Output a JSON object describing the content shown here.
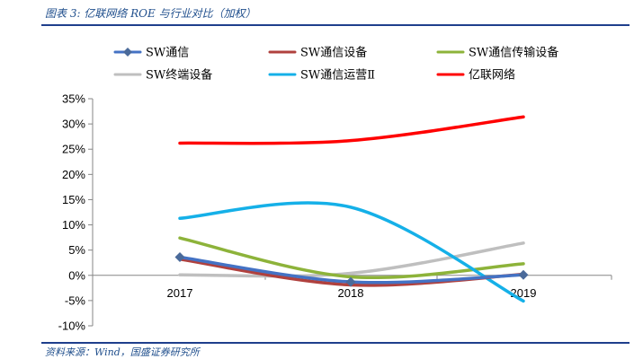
{
  "figure": {
    "title": "图表 3:  亿联网络 ROE 与行业对比（加权）",
    "source": "资料来源：Wind，国盛证券研究所"
  },
  "chart_data": {
    "type": "line",
    "title": "",
    "xlabel": "",
    "ylabel": "",
    "categories": [
      "2017",
      "2018",
      "2019"
    ],
    "ylim": [
      -10,
      35
    ],
    "yticks": [
      "35%",
      "30%",
      "25%",
      "20%",
      "15%",
      "10%",
      "5%",
      "0%",
      "-5%",
      "-10%"
    ],
    "ytick_values": [
      35,
      30,
      25,
      20,
      15,
      10,
      5,
      0,
      -5,
      -10
    ],
    "grid": false,
    "legend_position": "top",
    "series": [
      {
        "name": "SW通信",
        "values": [
          3.6,
          -1.3,
          0.1
        ],
        "color": "#4472C4",
        "marker": "diamond",
        "markerColor": "#4a6a9a"
      },
      {
        "name": "SW通信设备",
        "values": [
          3.2,
          -1.9,
          0.2
        ],
        "color": "#B0413E",
        "marker": "none"
      },
      {
        "name": "SW通信传输设备",
        "values": [
          7.4,
          -0.3,
          2.3
        ],
        "color": "#8DB33A",
        "marker": "none"
      },
      {
        "name": "SW终端设备",
        "values": [
          0.1,
          0.4,
          6.4
        ],
        "color": "#BFBFBF",
        "marker": "none"
      },
      {
        "name": "SW通信运营Ⅱ",
        "values": [
          11.3,
          13.5,
          -5.1
        ],
        "color": "#15B0E8",
        "marker": "none"
      },
      {
        "name": "亿联网络",
        "values": [
          26.2,
          26.7,
          31.4
        ],
        "color": "#FF0000",
        "marker": "none"
      }
    ]
  }
}
